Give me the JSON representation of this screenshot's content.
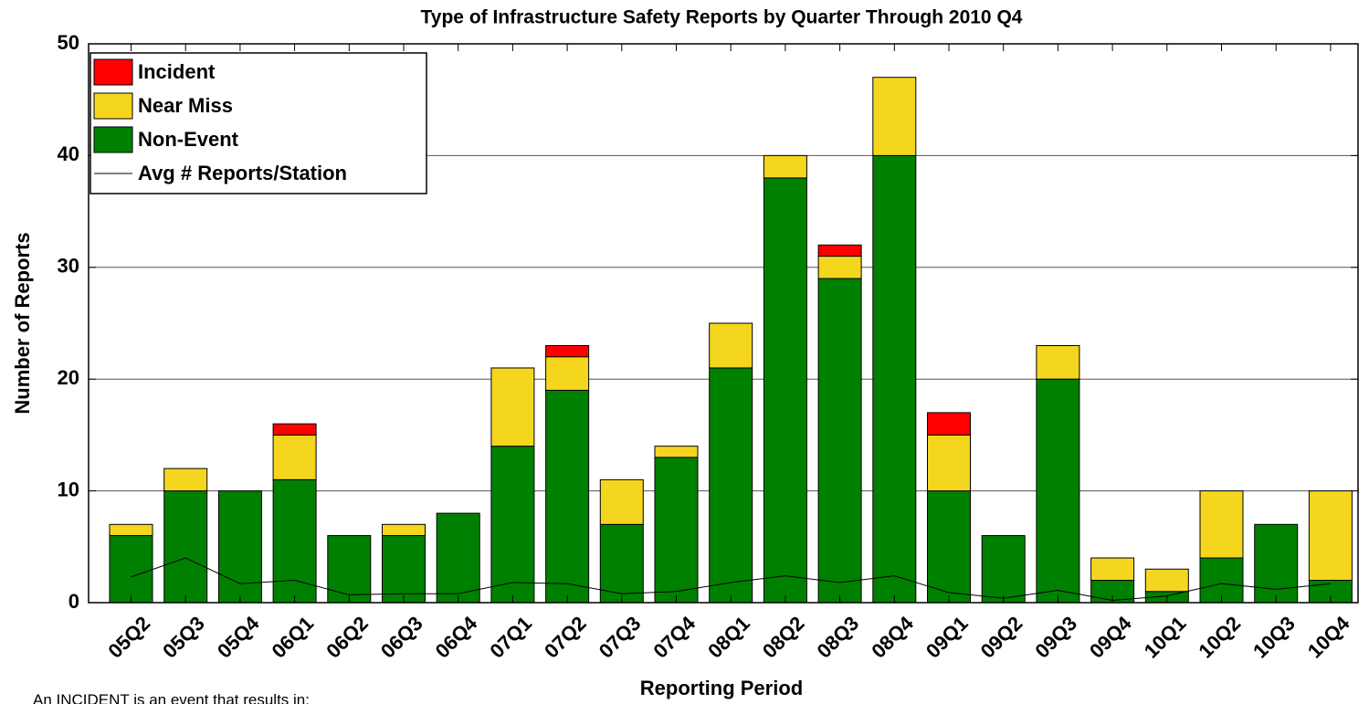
{
  "chart_data": {
    "type": "bar",
    "stacked": true,
    "title": "Type of Infrastructure Safety Reports by Quarter Through 2010 Q4",
    "xlabel": "Reporting Period",
    "ylabel": "Number of Reports",
    "note": "An INCIDENT is an event that results in:",
    "categories": [
      "05Q2",
      "05Q3",
      "05Q4",
      "06Q1",
      "06Q2",
      "06Q3",
      "06Q4",
      "07Q1",
      "07Q2",
      "07Q3",
      "07Q4",
      "08Q1",
      "08Q2",
      "08Q3",
      "08Q4",
      "09Q1",
      "09Q2",
      "09Q3",
      "09Q4",
      "10Q1",
      "10Q2",
      "10Q3",
      "10Q4"
    ],
    "series": [
      {
        "name": "Incident",
        "color": "#ff0000",
        "values": [
          0,
          0,
          0,
          1,
          0,
          0,
          0,
          0,
          1,
          0,
          0,
          0,
          0,
          1,
          0,
          2,
          0,
          0,
          0,
          0,
          0,
          0,
          0
        ]
      },
      {
        "name": "Near Miss",
        "color": "#f5d61e",
        "values": [
          1,
          2,
          0,
          4,
          0,
          1,
          0,
          7,
          3,
          4,
          1,
          4,
          2,
          2,
          7,
          5,
          0,
          3,
          2,
          2,
          6,
          0,
          8
        ]
      },
      {
        "name": "Non-Event",
        "color": "#008000",
        "values": [
          6,
          10,
          10,
          11,
          6,
          6,
          8,
          14,
          19,
          7,
          13,
          21,
          38,
          29,
          40,
          10,
          6,
          20,
          2,
          1,
          4,
          7,
          2
        ]
      },
      {
        "name": "Avg # Reports/Station",
        "color": "#000000",
        "type": "line",
        "values": [
          2.3,
          4,
          1.7,
          2,
          0.7,
          0.8,
          0.8,
          1.8,
          1.7,
          0.8,
          1,
          1.8,
          2.4,
          1.8,
          2.4,
          0.9,
          0.4,
          1.1,
          0.2,
          0.6,
          1.7,
          1.2,
          1.7
        ]
      }
    ],
    "ylim": [
      0,
      50
    ],
    "yticks": [
      0,
      10,
      20,
      30,
      40,
      50
    ],
    "grid": true,
    "legend": "upper left"
  }
}
